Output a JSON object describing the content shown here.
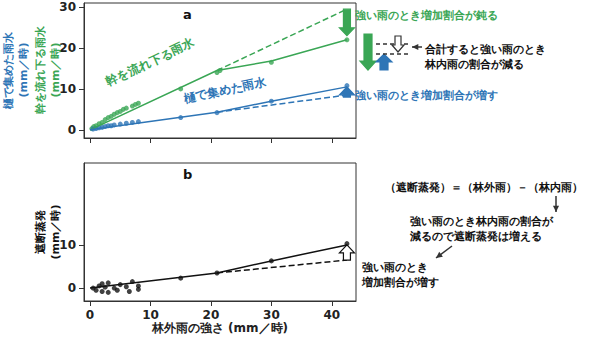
{
  "chart_data": [
    {
      "type": "scatter",
      "panel_label": "a",
      "ylabels": [
        {
          "text": "樋で集めた雨水\n(mm／時)",
          "color": "#2e75b6"
        },
        {
          "text": "幹を流れ下る雨水\n(mm／時)",
          "color": "#3aa655"
        }
      ],
      "xlim": [
        -1,
        44
      ],
      "xticks": [
        0,
        10,
        20,
        30,
        40
      ],
      "ylim": [
        -2,
        31
      ],
      "yticks": [
        0,
        10,
        20,
        30
      ],
      "grid": false,
      "tick_labels": "y",
      "series": [
        {
          "name": "幹を流れ下る雨水",
          "color": "#3aa655",
          "marker": "circle",
          "points": {
            "x": [
              0.3,
              0.6,
              1,
              1.5,
              2,
              2.5,
              3,
              3.5,
              4,
              4.5,
              5,
              5.5,
              6,
              7,
              7.5,
              8,
              15,
              21,
              21.5,
              30,
              42.5
            ],
            "values": [
              0.3,
              0.8,
              1,
              1.5,
              1.8,
              2.5,
              3,
              3.3,
              3.8,
              4.2,
              4.5,
              5,
              5.3,
              5.8,
              6.2,
              6.5,
              10,
              14,
              14.5,
              16.5,
              22
            ]
          },
          "fit": {
            "x": [
              0,
              21,
              30,
              42.5
            ],
            "values": [
              0,
              14.5,
              16.8,
              22
            ],
            "line_style": "solid"
          },
          "extrapolation": {
            "x": [
              21,
              42.5
            ],
            "values": [
              14.5,
              29.5
            ],
            "line_style": "dashed"
          },
          "arrow": {
            "x": 42.5,
            "from": 29.5,
            "to": 23,
            "hollow": false
          }
        },
        {
          "name": "樋で集めた雨水",
          "color": "#2e75b6",
          "marker": "circle",
          "points": {
            "x": [
              0.5,
              1,
              1.5,
              2,
              2.5,
              3,
              3.5,
              4,
              5,
              6,
              7,
              8,
              15,
              21,
              30,
              42.5
            ],
            "values": [
              0.2,
              0.3,
              0.5,
              0.6,
              0.8,
              1,
              1,
              1.2,
              1.4,
              1.6,
              1.8,
              2,
              3,
              4.2,
              7,
              10.8
            ]
          },
          "fit": {
            "x": [
              0,
              21,
              30,
              42.5
            ],
            "values": [
              0,
              4.3,
              7,
              10.5
            ],
            "line_style": "solid"
          },
          "extrapolation": {
            "x": [
              21,
              42.5
            ],
            "values": [
              4.3,
              8.5
            ],
            "line_style": "dashed"
          },
          "arrow": {
            "x": 42.5,
            "from": 8,
            "to": 10.5,
            "hollow": false
          }
        }
      ],
      "annotations": [
        {
          "text": "強い雨のとき増加割合が鈍る",
          "color": "#3aa655"
        },
        {
          "text": "合計すると強い雨のとき\n林内雨の割合が減る",
          "color": "#111111"
        },
        {
          "text": "強い雨のとき増加割合が増す",
          "color": "#2e75b6"
        }
      ]
    },
    {
      "type": "scatter",
      "panel_label": "b",
      "xlabel": "林外雨の強さ (mm／時)",
      "ylabels": [
        {
          "text": "遮断蒸発\n(mm／時)",
          "color": "#111111"
        }
      ],
      "xlim": [
        -1,
        44
      ],
      "xticks": [
        0,
        10,
        20,
        30,
        40
      ],
      "ylim": [
        -3,
        29
      ],
      "yticks": [
        0,
        10
      ],
      "grid": false,
      "series": [
        {
          "color": "#111111",
          "marker": "circle",
          "points": {
            "x": [
              0.5,
              1,
              1.5,
              2,
              2,
              2.5,
              3,
              3,
              4,
              4.5,
              5,
              6,
              6.5,
              7,
              8,
              8,
              15,
              21,
              30,
              42.5
            ],
            "values": [
              0,
              -0.5,
              0.5,
              1,
              -0.8,
              0.2,
              -1,
              1.2,
              0,
              -0.5,
              0.8,
              0.3,
              -0.8,
              1.5,
              0.5,
              -0.3,
              2.3,
              3.5,
              6.3,
              10.3
            ]
          },
          "fit": {
            "x": [
              0,
              21,
              30,
              42.5
            ],
            "values": [
              0,
              3.5,
              6.3,
              10
            ],
            "line_style": "solid"
          },
          "extrapolation": {
            "x": [
              21,
              42.5
            ],
            "values": [
              3.5,
              6.5
            ],
            "line_style": "dashed"
          },
          "arrow": {
            "x": 42.5,
            "from": 6.5,
            "to": 10,
            "hollow": true
          }
        }
      ],
      "annotations": [
        {
          "text": "（遮断蒸発）＝（林外雨）－（林内雨）",
          "color": "#111111"
        },
        {
          "text": "強い雨のとき林内雨の割合が\n減るので遮断蒸発は増える",
          "color": "#111111"
        },
        {
          "text": "強い雨のとき\n増加割合が増す",
          "color": "#111111"
        }
      ]
    }
  ]
}
